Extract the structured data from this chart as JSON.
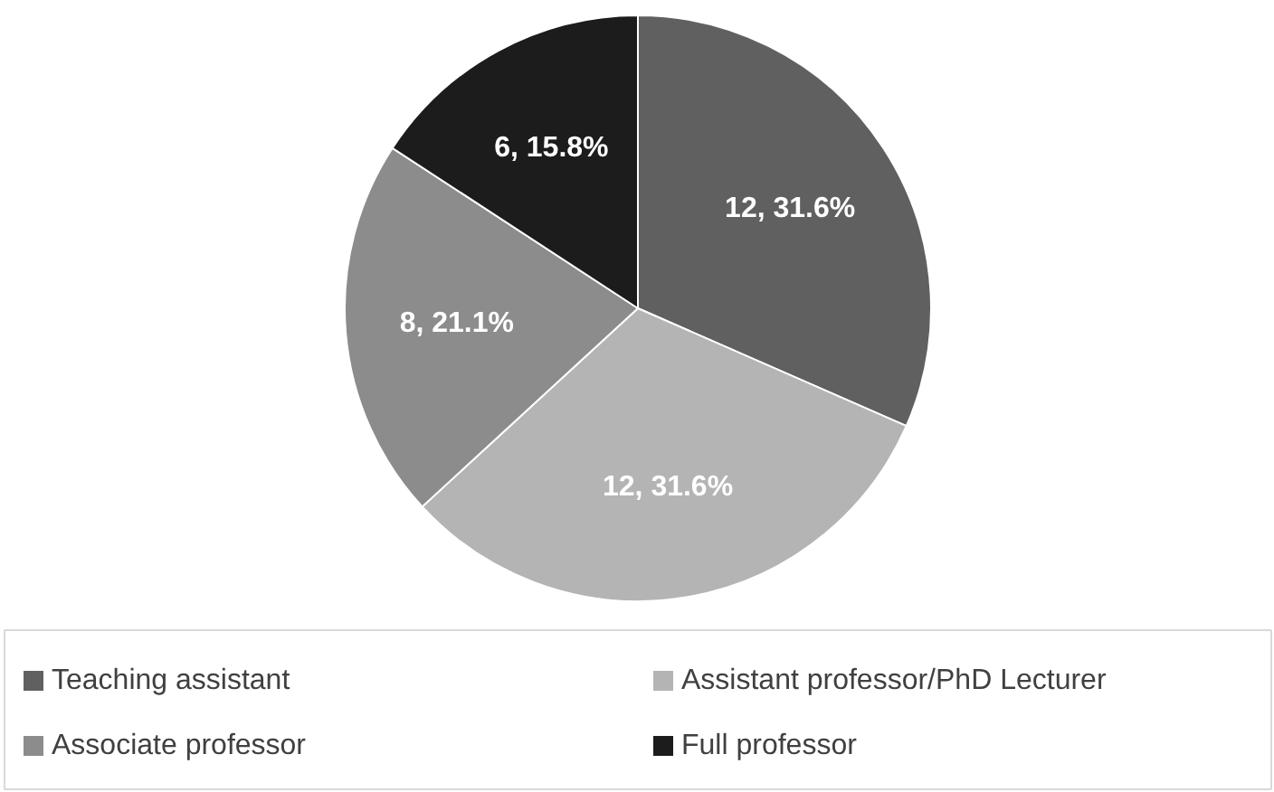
{
  "chart_data": {
    "type": "pie",
    "categories": [
      "Teaching assistant",
      "Assistant professor/PhD Lecturer",
      "Associate professor",
      "Full professor"
    ],
    "values": [
      12,
      12,
      8,
      6
    ],
    "colors": [
      "#606060",
      "#b4b4b4",
      "#8c8c8c",
      "#1c1c1c"
    ],
    "value_labels": [
      "12, 31.6%",
      "12, 31.6%",
      "8, 21.1%",
      "6, 15.8%"
    ],
    "legend": "bottom"
  }
}
